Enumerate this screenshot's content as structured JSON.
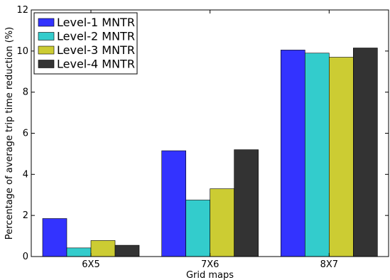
{
  "chart_data": {
    "type": "bar",
    "title": "",
    "xlabel": "Grid maps",
    "ylabel": "Percentage of average trip time reduction (%)",
    "categories": [
      "6X5",
      "7X6",
      "8X7"
    ],
    "ylim": [
      0,
      12
    ],
    "yticks": [
      "0",
      "2",
      "4",
      "6",
      "8",
      "10",
      "12"
    ],
    "grid": false,
    "legend_position": "top-left",
    "series": [
      {
        "name": "Level-1 MNTR",
        "color": "#3333ff",
        "values": [
          1.85,
          5.15,
          10.05
        ]
      },
      {
        "name": "Level-2 MNTR",
        "color": "#33cccc",
        "values": [
          0.42,
          2.75,
          9.9
        ]
      },
      {
        "name": "Level-3 MNTR",
        "color": "#cccc33",
        "values": [
          0.78,
          3.3,
          9.7
        ]
      },
      {
        "name": "Level-4 MNTR",
        "color": "#333333",
        "values": [
          0.55,
          5.2,
          10.15
        ]
      }
    ]
  }
}
